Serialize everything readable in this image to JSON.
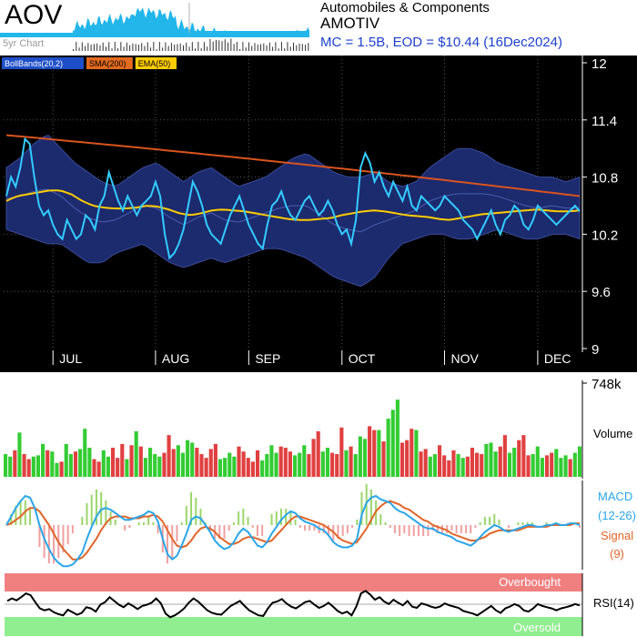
{
  "ticker": "AOV",
  "mini_chart_label": "5yr Chart",
  "sector": "Automobiles & Components",
  "company": "AMOTIV",
  "summary": "MC = 1.5B, EOD = $10.44 (16Dec2024)",
  "colors": {
    "price": "#33ccff",
    "bands_fill": "#1c2a6e",
    "bands_line": "#3a4c9a",
    "sma": "#d9541f",
    "ema": "#ffcc00",
    "up": "#33cc33",
    "down": "#e04040",
    "macd": "#2aa6e8",
    "signal": "#e0662a",
    "overbought": "#f08080",
    "oversold": "#90ee90"
  },
  "legend": [
    {
      "label": "BollBands(20,2)",
      "color": "#1f4fc8",
      "text": "#ffffff"
    },
    {
      "label": "SMA(200)",
      "color": "#e36a1e",
      "text": "#000000"
    },
    {
      "label": "EMA(50)",
      "color": "#ffcc00",
      "text": "#000000"
    }
  ],
  "chart_data": {
    "type": "line",
    "title": "AOV",
    "y_ticks": [
      "12",
      "11.4",
      "10.8",
      "10.2",
      "9.6",
      "9"
    ],
    "ylim": [
      9,
      12
    ],
    "x_ticks": [
      "JUL",
      "AUG",
      "SEP",
      "OCT",
      "NOV",
      "DEC"
    ],
    "x_tick_index": [
      10,
      32,
      52,
      72,
      94,
      114
    ],
    "n": 124,
    "price": [
      10.6,
      10.8,
      10.7,
      10.9,
      11.2,
      11.15,
      10.8,
      10.5,
      10.4,
      10.45,
      10.3,
      10.2,
      10.15,
      10.35,
      10.25,
      10.15,
      10.2,
      10.4,
      10.35,
      10.25,
      10.5,
      10.6,
      10.85,
      10.7,
      10.55,
      10.45,
      10.6,
      10.5,
      10.4,
      10.5,
      10.55,
      10.6,
      10.75,
      10.6,
      10.2,
      9.95,
      10.0,
      10.1,
      10.25,
      10.5,
      10.75,
      10.65,
      10.5,
      10.3,
      10.2,
      10.15,
      10.1,
      10.25,
      10.4,
      10.5,
      10.6,
      10.45,
      10.3,
      10.2,
      10.1,
      10.05,
      10.3,
      10.5,
      10.55,
      10.65,
      10.5,
      10.4,
      10.35,
      10.45,
      10.55,
      10.6,
      10.5,
      10.4,
      10.45,
      10.55,
      10.45,
      10.3,
      10.2,
      10.25,
      10.1,
      10.35,
      10.9,
      11.05,
      10.95,
      10.75,
      10.85,
      10.7,
      10.6,
      10.75,
      10.65,
      10.55,
      10.7,
      10.5,
      10.45,
      10.6,
      10.55,
      10.5,
      10.45,
      10.5,
      10.6,
      10.55,
      10.5,
      10.45,
      10.35,
      10.3,
      10.25,
      10.15,
      10.25,
      10.35,
      10.45,
      10.3,
      10.2,
      10.35,
      10.4,
      10.5,
      10.45,
      10.3,
      10.25,
      10.35,
      10.5,
      10.45,
      10.4,
      10.35,
      10.3,
      10.35,
      10.4,
      10.45,
      10.5,
      10.44
    ],
    "sma200": {
      "from": 11.24,
      "to": 10.6
    },
    "ema50": [
      10.55,
      10.6,
      10.62,
      10.64,
      10.66,
      10.66,
      10.62,
      10.55,
      10.5,
      10.48,
      10.47,
      10.47,
      10.48,
      10.5,
      10.49,
      10.46,
      10.42,
      10.4,
      10.42,
      10.45,
      10.46,
      10.45,
      10.44,
      10.42,
      10.4,
      10.38,
      10.36,
      10.35,
      10.35,
      10.36,
      10.37,
      10.4,
      10.42,
      10.44,
      10.45,
      10.44,
      10.42,
      10.4,
      10.39,
      10.38,
      10.36,
      10.35,
      10.37,
      10.39,
      10.41,
      10.42,
      10.43,
      10.44,
      10.45,
      10.46,
      10.45,
      10.44,
      10.44,
      10.45
    ],
    "boll_upper": [
      10.9,
      11.0,
      11.15,
      11.25,
      11.1,
      10.95,
      10.85,
      10.75,
      10.7,
      10.8,
      10.9,
      10.95,
      10.85,
      10.75,
      10.85,
      10.9,
      10.8,
      10.7,
      10.75,
      10.8,
      10.9,
      11.0,
      11.05,
      10.95,
      10.85,
      10.8,
      10.8,
      10.85,
      10.75,
      10.7,
      10.75,
      10.9,
      11.0,
      11.1,
      11.1,
      11.05,
      10.95,
      10.9,
      10.85,
      10.8,
      10.8,
      10.75,
      10.8
    ],
    "boll_lower": [
      10.25,
      10.2,
      10.15,
      10.1,
      10.1,
      10.0,
      9.9,
      9.9,
      10.0,
      10.05,
      10.1,
      10.0,
      9.9,
      9.85,
      9.9,
      9.95,
      9.9,
      9.95,
      10.0,
      10.05,
      10.05,
      10.0,
      9.95,
      9.85,
      9.75,
      9.7,
      9.65,
      9.75,
      9.95,
      10.1,
      10.15,
      10.2,
      10.2,
      10.15,
      10.15,
      10.2,
      10.25,
      10.2,
      10.15,
      10.15,
      10.2,
      10.2,
      10.15
    ],
    "volume_label": "Volume",
    "volume_max_label": "748k",
    "volume_max": 748000,
    "volume": [
      180,
      160,
      210,
      350,
      180,
      140,
      160,
      170,
      260,
      210,
      200,
      110,
      120,
      260,
      180,
      200,
      220,
      380,
      230,
      140,
      120,
      210,
      160,
      230,
      150,
      260,
      140,
      250,
      360,
      240,
      150,
      230,
      180,
      160,
      190,
      330,
      220,
      250,
      190,
      290,
      270,
      230,
      180,
      150,
      220,
      260,
      140,
      150,
      190,
      160,
      240,
      200,
      150,
      120,
      210,
      130,
      180,
      250,
      190,
      240,
      230,
      200,
      170,
      190,
      250,
      180,
      300,
      360,
      200,
      230,
      190,
      180,
      390,
      210,
      240,
      180,
      320,
      300,
      400,
      370,
      370,
      280,
      460,
      530,
      610,
      270,
      290,
      380,
      370,
      200,
      220,
      160,
      180,
      250,
      170,
      130,
      210,
      180,
      150,
      160,
      230,
      190,
      180,
      260,
      270,
      200,
      240,
      330,
      190,
      230,
      290,
      330,
      170,
      180,
      240,
      150,
      170,
      190,
      220,
      150,
      170,
      140,
      190,
      240
    ],
    "volume_up": [
      1,
      1,
      0,
      1,
      0,
      0,
      1,
      1,
      1,
      0,
      1,
      1,
      0,
      1,
      1,
      0,
      1,
      1,
      1,
      0,
      0,
      1,
      1,
      0,
      0,
      0,
      1,
      0,
      1,
      0,
      1,
      1,
      1,
      1,
      0,
      0,
      0,
      1,
      1,
      1,
      1,
      0,
      0,
      0,
      0,
      0,
      1,
      1,
      1,
      1,
      0,
      0,
      0,
      0,
      0,
      1,
      1,
      1,
      1,
      0,
      0,
      0,
      1,
      1,
      1,
      0,
      0,
      0,
      1,
      1,
      0,
      0,
      0,
      1,
      0,
      1,
      1,
      1,
      0,
      0,
      1,
      0,
      1,
      1,
      1,
      0,
      0,
      0,
      1,
      0,
      0,
      1,
      1,
      0,
      0,
      0,
      0,
      1,
      1,
      0,
      0,
      0,
      0,
      1,
      1,
      1,
      0,
      0,
      1,
      1,
      0,
      0,
      0,
      1,
      1,
      1,
      0,
      0,
      1,
      1,
      1,
      0,
      1,
      1
    ],
    "macd_label": "MACD",
    "macd_params": "(12-26)",
    "signal_label": "Signal",
    "signal_params": "(9)",
    "macd": [
      0.0,
      0.05,
      0.1,
      0.14,
      0.17,
      0.16,
      0.1,
      0.0,
      -0.08,
      -0.14,
      -0.19,
      -0.22,
      -0.24,
      -0.24,
      -0.23,
      -0.2,
      -0.16,
      -0.08,
      -0.01,
      0.05,
      0.09,
      0.1,
      0.09,
      0.07,
      0.05,
      0.03,
      0.03,
      0.04,
      0.05,
      0.06,
      0.08,
      0.07,
      0.02,
      -0.08,
      -0.17,
      -0.2,
      -0.18,
      -0.12,
      -0.05,
      0.03,
      0.05,
      0.04,
      0.0,
      -0.04,
      -0.09,
      -0.12,
      -0.14,
      -0.13,
      -0.1,
      -0.05,
      -0.02,
      -0.04,
      -0.08,
      -0.12,
      -0.13,
      -0.1,
      -0.05,
      -0.01,
      0.03,
      0.06,
      0.08,
      0.07,
      0.04,
      0.02,
      0.01,
      0.0,
      -0.02,
      -0.03,
      -0.06,
      -0.1,
      -0.12,
      -0.13,
      -0.13,
      -0.12,
      -0.08,
      0.06,
      0.13,
      0.16,
      0.17,
      0.15,
      0.14,
      0.13,
      0.1,
      0.08,
      0.07,
      0.05,
      0.03,
      0.01,
      -0.01,
      -0.02,
      -0.02,
      -0.04,
      -0.05,
      -0.06,
      -0.07,
      -0.09,
      -0.1,
      -0.11,
      -0.12,
      -0.1,
      -0.07,
      -0.04,
      -0.02,
      0.0,
      -0.01,
      -0.03,
      -0.04,
      -0.03,
      -0.02,
      -0.01,
      0.0,
      0.0,
      -0.01,
      -0.01,
      0.0,
      0.0,
      0.01,
      0.0,
      0.0,
      0.01,
      0.01,
      0.0
    ],
    "signal": [
      0.0,
      0.01,
      0.03,
      0.05,
      0.08,
      0.1,
      0.1,
      0.08,
      0.04,
      0.0,
      -0.05,
      -0.1,
      -0.14,
      -0.17,
      -0.2,
      -0.2,
      -0.19,
      -0.16,
      -0.12,
      -0.08,
      -0.03,
      0.01,
      0.04,
      0.05,
      0.05,
      0.05,
      0.04,
      0.04,
      0.04,
      0.05,
      0.05,
      0.06,
      0.05,
      0.02,
      -0.03,
      -0.08,
      -0.12,
      -0.13,
      -0.12,
      -0.09,
      -0.05,
      -0.02,
      -0.01,
      -0.02,
      -0.04,
      -0.07,
      -0.09,
      -0.11,
      -0.11,
      -0.1,
      -0.08,
      -0.07,
      -0.07,
      -0.08,
      -0.09,
      -0.1,
      -0.09,
      -0.06,
      -0.03,
      0.0,
      0.03,
      0.05,
      0.05,
      0.04,
      0.03,
      0.02,
      0.01,
      0.0,
      -0.02,
      -0.04,
      -0.07,
      -0.09,
      -0.1,
      -0.11,
      -0.1,
      -0.06,
      -0.02,
      0.03,
      0.08,
      0.11,
      0.13,
      0.14,
      0.13,
      0.12,
      0.1,
      0.09,
      0.07,
      0.05,
      0.03,
      0.02,
      0.0,
      -0.01,
      -0.02,
      -0.03,
      -0.05,
      -0.06,
      -0.07,
      -0.08,
      -0.09,
      -0.09,
      -0.08,
      -0.07,
      -0.05,
      -0.04,
      -0.03,
      -0.03,
      -0.03,
      -0.03,
      -0.03,
      -0.02,
      -0.01,
      -0.01,
      -0.01,
      -0.01,
      -0.01,
      0.0,
      0.0,
      0.0,
      0.0,
      0.0,
      0.01,
      0.01
    ],
    "rsi_label": "RSI(14)",
    "overbought_label": "Overbought",
    "oversold_label": "Oversold",
    "rsi": [
      56,
      60,
      57,
      62,
      68,
      65,
      54,
      44,
      41,
      43,
      38,
      35,
      33,
      42,
      38,
      34,
      37,
      46,
      44,
      39,
      50,
      54,
      62,
      56,
      50,
      46,
      52,
      48,
      43,
      48,
      50,
      53,
      60,
      52,
      36,
      30,
      33,
      38,
      44,
      53,
      60,
      55,
      48,
      41,
      37,
      35,
      34,
      41,
      48,
      52,
      56,
      48,
      41,
      37,
      33,
      32,
      44,
      53,
      55,
      59,
      52,
      47,
      44,
      49,
      54,
      56,
      50,
      45,
      48,
      53,
      47,
      40,
      36,
      39,
      33,
      47,
      68,
      72,
      66,
      58,
      62,
      55,
      51,
      58,
      53,
      49,
      56,
      47,
      45,
      52,
      50,
      47,
      45,
      47,
      52,
      49,
      47,
      45,
      40,
      38,
      36,
      33,
      38,
      43,
      48,
      41,
      37,
      44,
      47,
      51,
      48,
      41,
      39,
      44,
      51,
      48,
      46,
      44,
      41,
      44,
      46,
      48,
      51,
      49
    ]
  }
}
